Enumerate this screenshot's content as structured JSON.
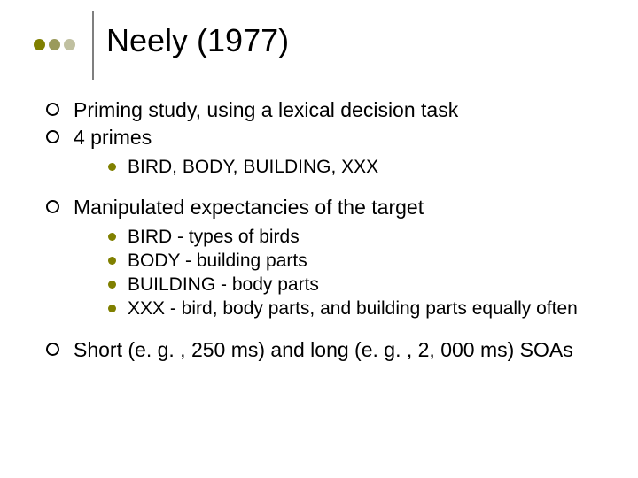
{
  "colors": {
    "dot1": "#808000",
    "dot2": "#9a9a5c",
    "dot3": "#c0c0a0",
    "l2_bullet": "#808000",
    "text": "#000000"
  },
  "title": "Neely (1977)",
  "items": [
    {
      "type": "l1",
      "text": "Priming study, using a lexical decision task"
    },
    {
      "type": "l1",
      "text": "4 primes"
    },
    {
      "type": "l2",
      "text": "BIRD, BODY, BUILDING, XXX"
    },
    {
      "type": "gap"
    },
    {
      "type": "l1",
      "text": "Manipulated expectancies of the target"
    },
    {
      "type": "l2",
      "text": "BIRD - types of birds"
    },
    {
      "type": "l2",
      "text": "BODY - building parts"
    },
    {
      "type": "l2",
      "text": "BUILDING - body parts"
    },
    {
      "type": "l2",
      "text": "XXX - bird, body parts, and building parts equally often"
    },
    {
      "type": "gap"
    },
    {
      "type": "l1",
      "text": "Short (e. g. , 250 ms) and long (e. g. , 2, 000 ms) SOAs"
    }
  ]
}
